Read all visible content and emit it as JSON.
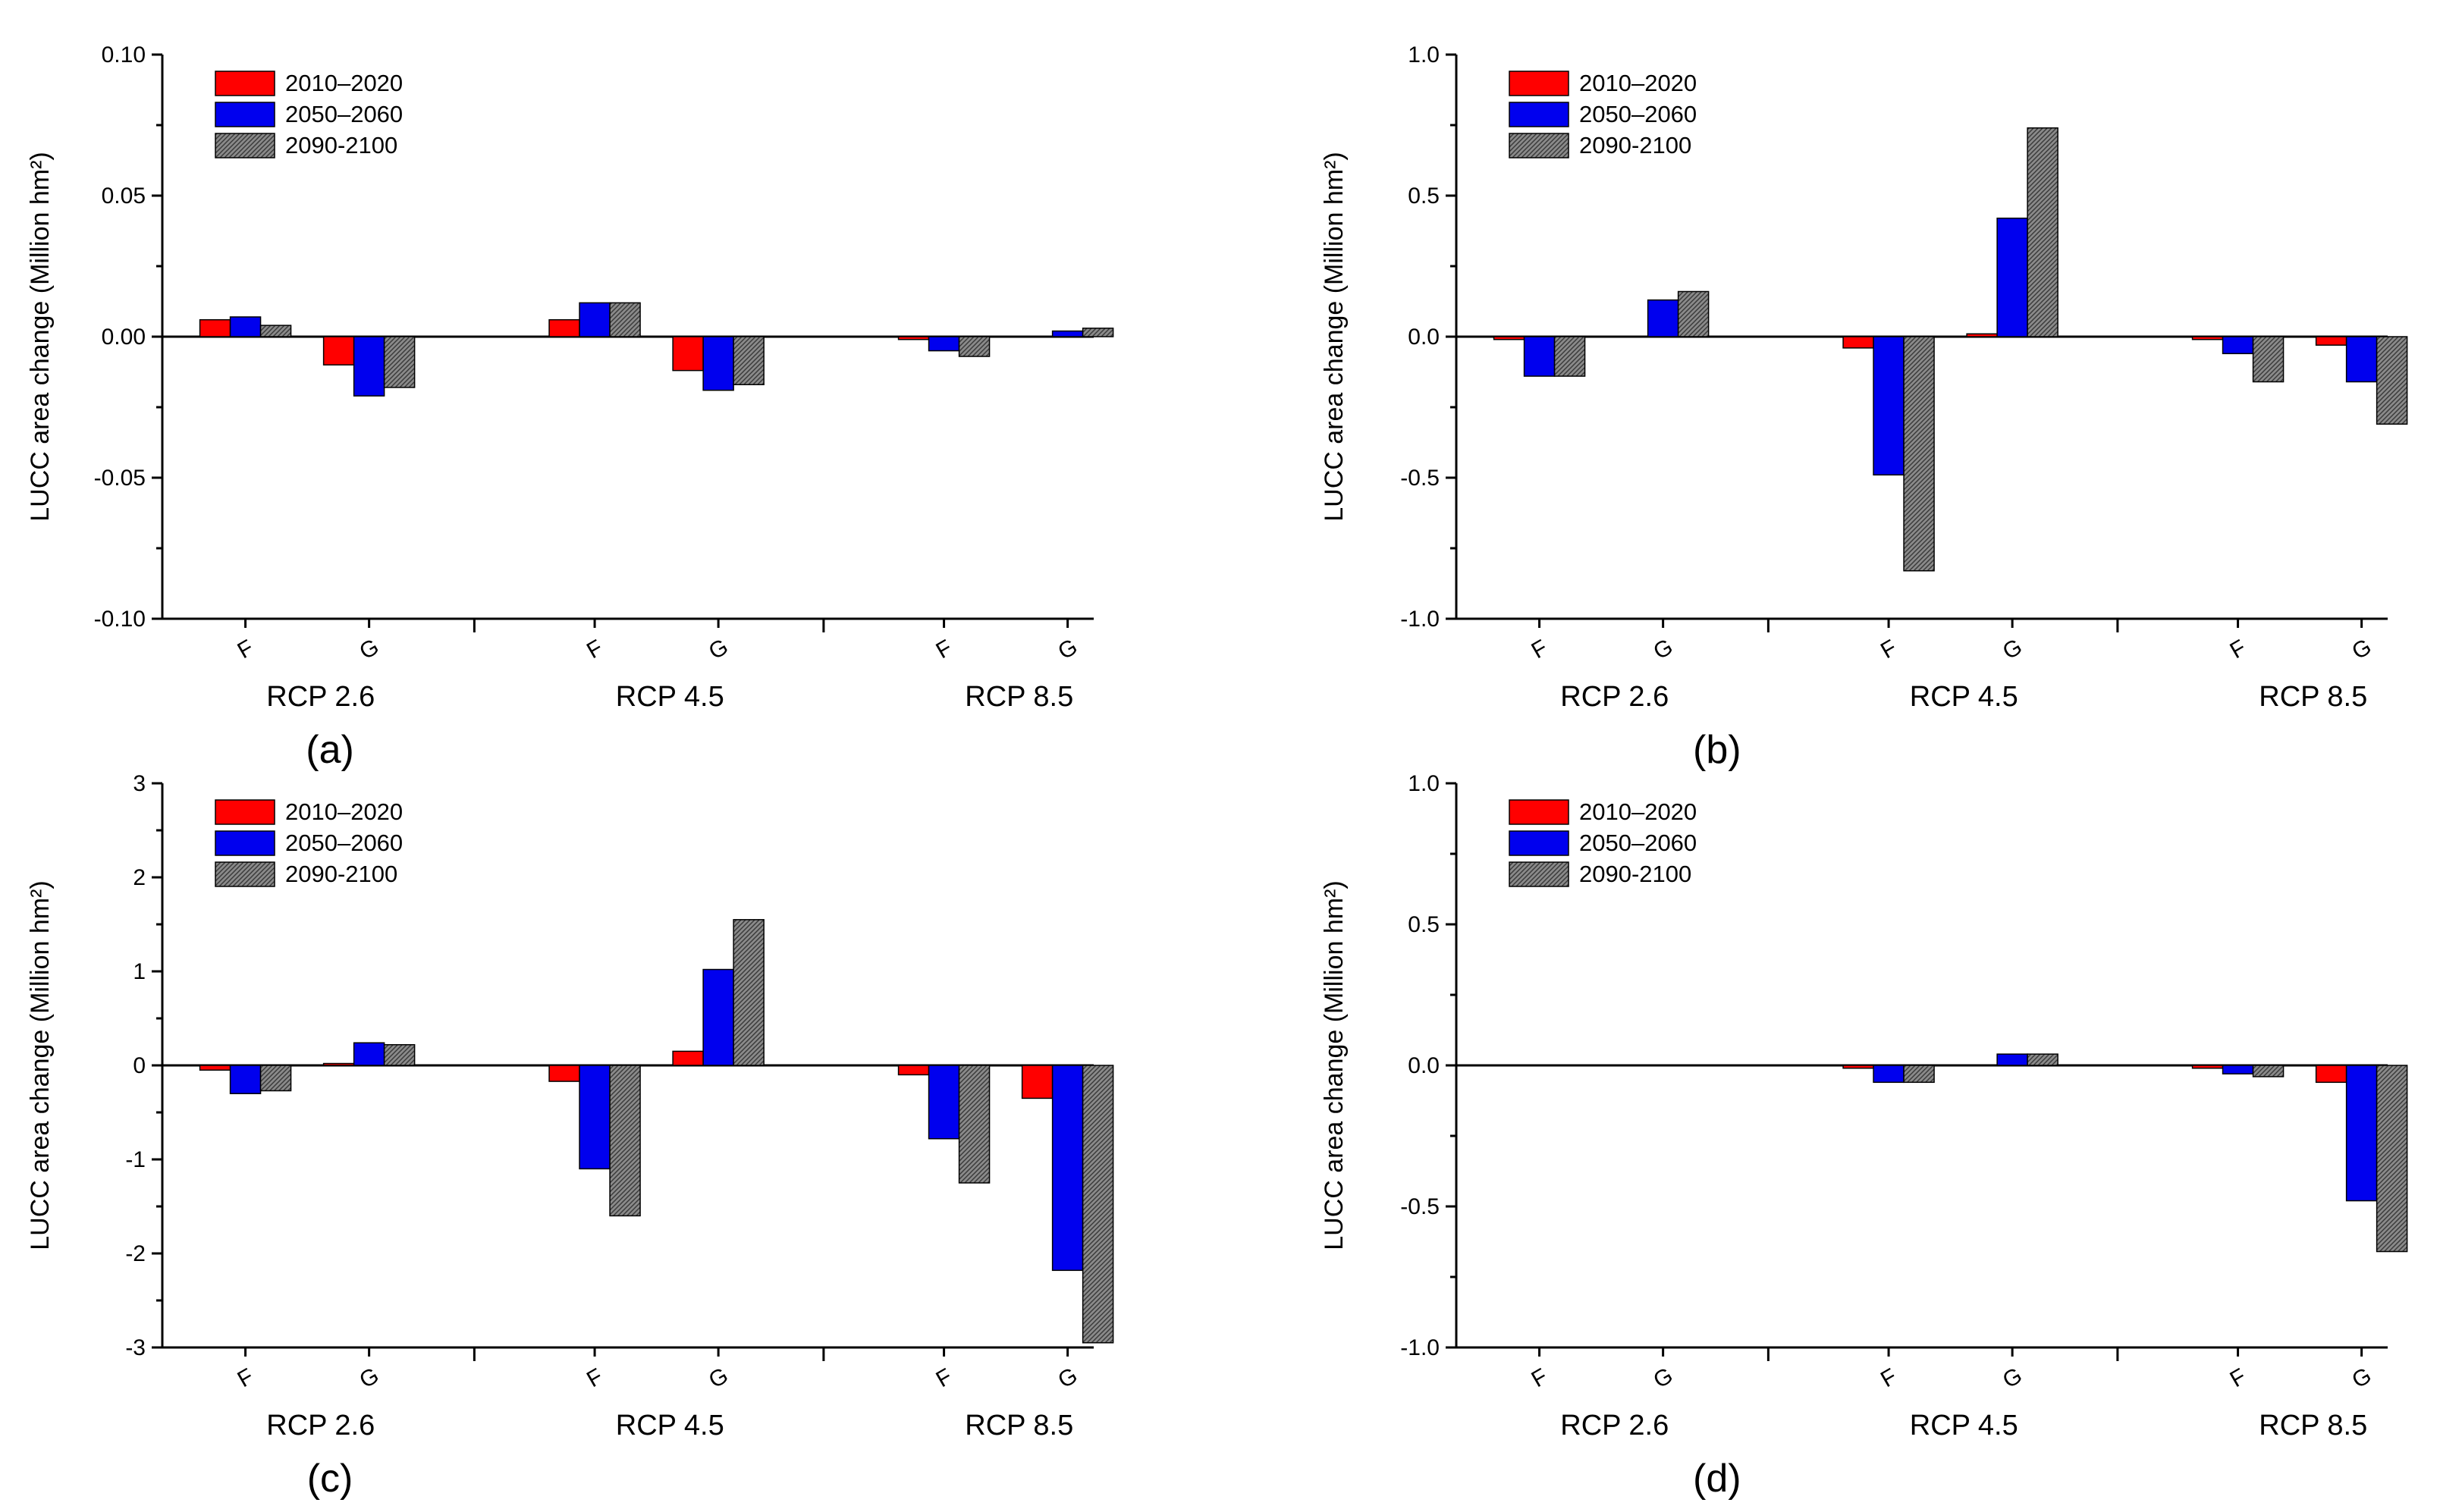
{
  "legend": {
    "entries": [
      "2010–2020",
      "2050–2060",
      "2090-2100"
    ],
    "colors": [
      "#ff0000",
      "#0000ee",
      "#8a8a8a"
    ],
    "placement": "top-left"
  },
  "chart_data": [
    {
      "type": "bar",
      "panel": "(a)",
      "ylabel": "LUCC area change (Million hm²)",
      "ylim": [
        -0.1,
        0.1
      ],
      "yticks": [
        "0.10",
        "0.05",
        "0.00",
        "-0.05",
        "-0.10"
      ],
      "ytick_values": [
        0.1,
        0.05,
        0.0,
        -0.05,
        -0.1
      ],
      "groups": [
        "RCP 2.6",
        "RCP 4.5",
        "RCP 8.5"
      ],
      "categories": [
        "F",
        "G",
        "F",
        "G",
        "F",
        "G"
      ],
      "series": [
        {
          "name": "2010–2020",
          "values": [
            0.006,
            -0.01,
            0.006,
            -0.012,
            -0.001,
            0.0
          ]
        },
        {
          "name": "2050–2060",
          "values": [
            0.007,
            -0.021,
            0.012,
            -0.019,
            -0.005,
            0.002
          ]
        },
        {
          "name": "2090-2100",
          "values": [
            0.004,
            -0.018,
            0.012,
            -0.017,
            -0.007,
            0.003
          ]
        }
      ],
      "grid": false
    },
    {
      "type": "bar",
      "panel": "(b)",
      "ylabel": "LUCC area change (Million hm²)",
      "ylim": [
        -1.0,
        1.0
      ],
      "yticks": [
        "1.0",
        "0.5",
        "0.0",
        "-0.5",
        "-1.0"
      ],
      "ytick_values": [
        1.0,
        0.5,
        0.0,
        -0.5,
        -1.0
      ],
      "groups": [
        "RCP 2.6",
        "RCP 4.5",
        "RCP 8.5"
      ],
      "categories": [
        "F",
        "G",
        "F",
        "G",
        "F",
        "G"
      ],
      "series": [
        {
          "name": "2010–2020",
          "values": [
            -0.01,
            0.0,
            -0.04,
            0.01,
            -0.01,
            -0.03
          ]
        },
        {
          "name": "2050–2060",
          "values": [
            -0.14,
            0.13,
            -0.49,
            0.42,
            -0.06,
            -0.16
          ]
        },
        {
          "name": "2090-2100",
          "values": [
            -0.14,
            0.16,
            -0.83,
            0.74,
            -0.16,
            -0.31
          ]
        }
      ],
      "grid": false
    },
    {
      "type": "bar",
      "panel": "(c)",
      "ylabel": "LUCC area change (Million hm²)",
      "ylim": [
        -3,
        3
      ],
      "yticks": [
        "3",
        "2",
        "1",
        "0",
        "-1",
        "-2",
        "-3"
      ],
      "ytick_values": [
        3,
        2,
        1,
        0,
        -1,
        -2,
        -3
      ],
      "groups": [
        "RCP 2.6",
        "RCP 4.5",
        "RCP 8.5"
      ],
      "categories": [
        "F",
        "G",
        "F",
        "G",
        "F",
        "G"
      ],
      "series": [
        {
          "name": "2010–2020",
          "values": [
            -0.05,
            0.02,
            -0.17,
            0.15,
            -0.1,
            -0.35
          ]
        },
        {
          "name": "2050–2060",
          "values": [
            -0.3,
            0.24,
            -1.1,
            1.02,
            -0.78,
            -2.18
          ]
        },
        {
          "name": "2090-2100",
          "values": [
            -0.27,
            0.22,
            -1.6,
            1.55,
            -1.25,
            -2.95
          ]
        }
      ],
      "grid": false
    },
    {
      "type": "bar",
      "panel": "(d)",
      "ylabel": "LUCC area change (Million hm²)",
      "ylim": [
        -1.0,
        1.0
      ],
      "yticks": [
        "1.0",
        "0.5",
        "0.0",
        "-0.5",
        "-1.0"
      ],
      "ytick_values": [
        1.0,
        0.5,
        0.0,
        -0.5,
        -1.0
      ],
      "groups": [
        "RCP 2.6",
        "RCP 4.5",
        "RCP 8.5"
      ],
      "categories": [
        "F",
        "G",
        "F",
        "G",
        "F",
        "G"
      ],
      "series": [
        {
          "name": "2010–2020",
          "values": [
            0.0,
            0.0,
            -0.01,
            0.0,
            -0.01,
            -0.06
          ]
        },
        {
          "name": "2050–2060",
          "values": [
            0.0,
            0.0,
            -0.06,
            0.04,
            -0.03,
            -0.48
          ]
        },
        {
          "name": "2090-2100",
          "values": [
            0.0,
            0.0,
            -0.06,
            0.04,
            -0.04,
            -0.66
          ]
        }
      ],
      "grid": false
    }
  ]
}
